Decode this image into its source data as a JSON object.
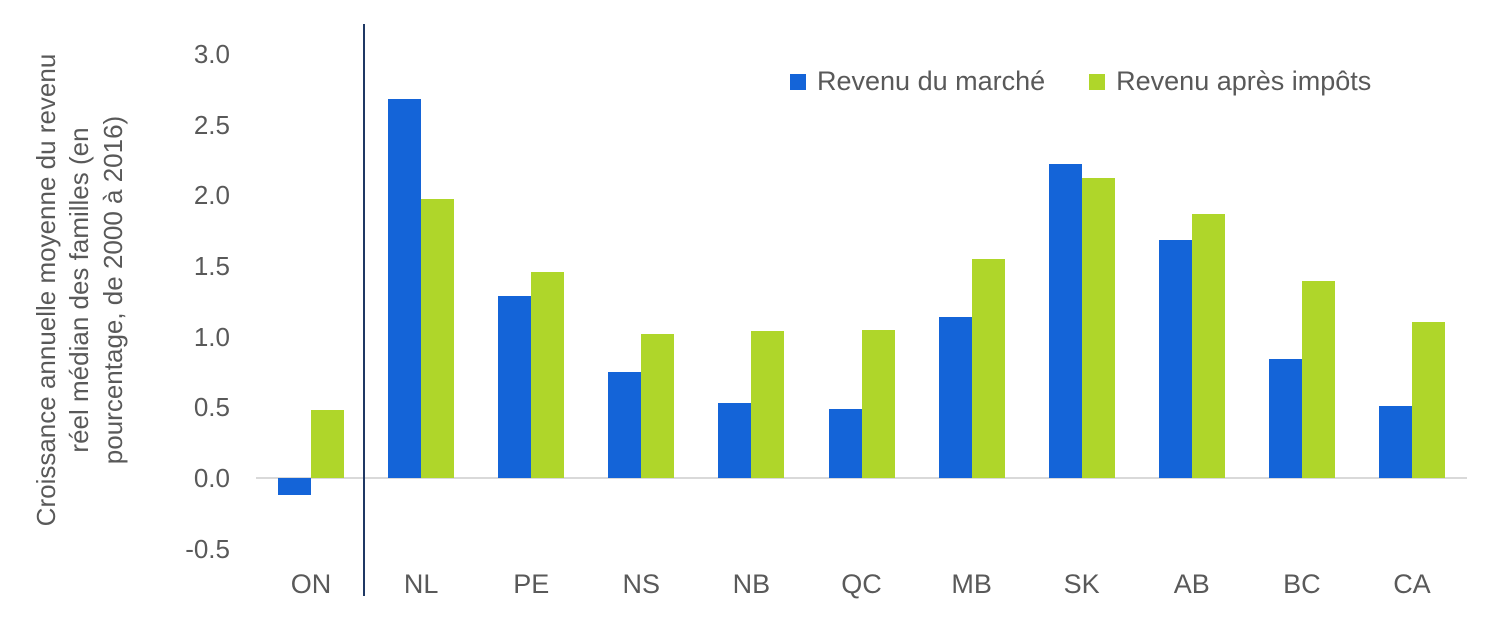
{
  "chart_data": {
    "type": "bar",
    "title": "",
    "xlabel": "",
    "ylabel": "Croissance annuelle moyenne du revenu réel médian des familles (en pourcentage, de 2000 à 2016)",
    "ylabel_lines": [
      "Croissance annuelle moyenne du revenu",
      "réel médian des familles (en",
      "pourcentage, de 2000 à 2016)"
    ],
    "categories": [
      "ON",
      "NL",
      "PE",
      "NS",
      "NB",
      "QC",
      "MB",
      "SK",
      "AB",
      "BC",
      "CA"
    ],
    "series": [
      {
        "name": "Revenu du marché",
        "color": "#1464D8",
        "values": [
          -0.12,
          2.68,
          1.29,
          0.75,
          0.53,
          0.49,
          1.14,
          2.22,
          1.68,
          0.84,
          0.51
        ]
      },
      {
        "name": "Revenu après impôts",
        "color": "#AFD62A",
        "values": [
          0.48,
          1.97,
          1.46,
          1.02,
          1.04,
          1.05,
          1.55,
          2.12,
          1.87,
          1.39,
          1.1
        ]
      }
    ],
    "ylim": [
      -0.5,
      3.0
    ],
    "ytick_step": 0.5,
    "grid": "zero-line-only",
    "legend_position": "top-right",
    "separator_after_category": "ON",
    "colors": {
      "axis_text": "#595959",
      "gridline": "#D9D9D9",
      "separator_line": "#1F3864"
    }
  }
}
